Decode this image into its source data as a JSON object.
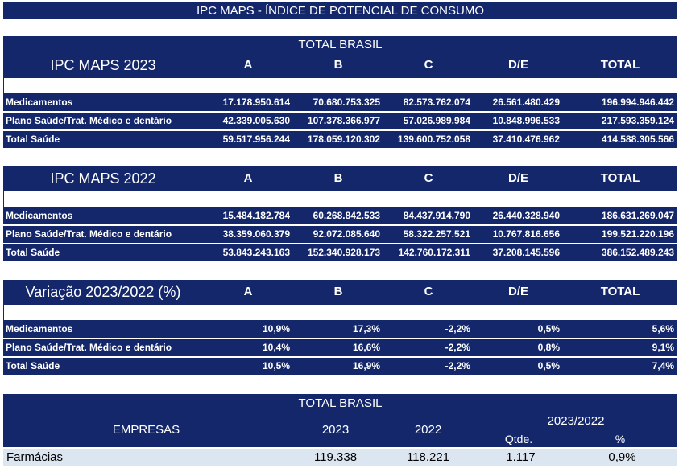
{
  "title": "IPC MAPS - ÍNDICE DE POTENCIAL DE CONSUMO",
  "section_title": "TOTAL BRASIL",
  "columns": [
    "A",
    "B",
    "C",
    "D/E",
    "TOTAL"
  ],
  "tables": [
    {
      "heading": "IPC MAPS 2023",
      "rows": [
        {
          "label": "Medicamentos",
          "values": [
            "17.178.950.614",
            "70.680.753.325",
            "82.573.762.074",
            "26.561.480.429",
            "196.994.946.442"
          ]
        },
        {
          "label": "Plano Saúde/Trat. Médico e dentário",
          "values": [
            "42.339.005.630",
            "107.378.366.977",
            "57.026.989.984",
            "10.848.996.533",
            "217.593.359.124"
          ]
        },
        {
          "label": "Total Saúde",
          "values": [
            "59.517.956.244",
            "178.059.120.302",
            "139.600.752.058",
            "37.410.476.962",
            "414.588.305.566"
          ]
        }
      ]
    },
    {
      "heading": "IPC MAPS 2022",
      "rows": [
        {
          "label": "Medicamentos",
          "values": [
            "15.484.182.784",
            "60.268.842.533",
            "84.437.914.790",
            "26.440.328.940",
            "186.631.269.047"
          ]
        },
        {
          "label": "Plano Saúde/Trat. Médico e dentário",
          "values": [
            "38.359.060.379",
            "92.072.085.640",
            "58.322.257.521",
            "10.767.816.656",
            "199.521.220.196"
          ]
        },
        {
          "label": "Total Saúde",
          "values": [
            "53.843.243.163",
            "152.340.928.173",
            "142.760.172.311",
            "37.208.145.596",
            "386.152.489.243"
          ]
        }
      ]
    },
    {
      "heading": "Variação 2023/2022 (%)",
      "rows": [
        {
          "label": "Medicamentos",
          "values": [
            "10,9%",
            "17,3%",
            "-2,2%",
            "0,5%",
            "5,6%"
          ]
        },
        {
          "label": "Plano Saúde/Trat. Médico e dentário",
          "values": [
            "10,4%",
            "16,6%",
            "-2,2%",
            "0,8%",
            "9,1%"
          ]
        },
        {
          "label": "Total Saúde",
          "values": [
            "10,5%",
            "16,9%",
            "-2,2%",
            "0,5%",
            "7,4%"
          ]
        }
      ]
    }
  ],
  "empresas": {
    "section_title": "TOTAL BRASIL",
    "label": "EMPRESAS",
    "year_2023": "2023",
    "year_2022": "2022",
    "variation_label": "2023/2022",
    "qtde_label": "Qtde.",
    "pct_label": "%",
    "row": {
      "label": "Farmácias",
      "v2023": "119.338",
      "v2022": "118.221",
      "qtde": "1.117",
      "pct": "0,9%"
    }
  }
}
